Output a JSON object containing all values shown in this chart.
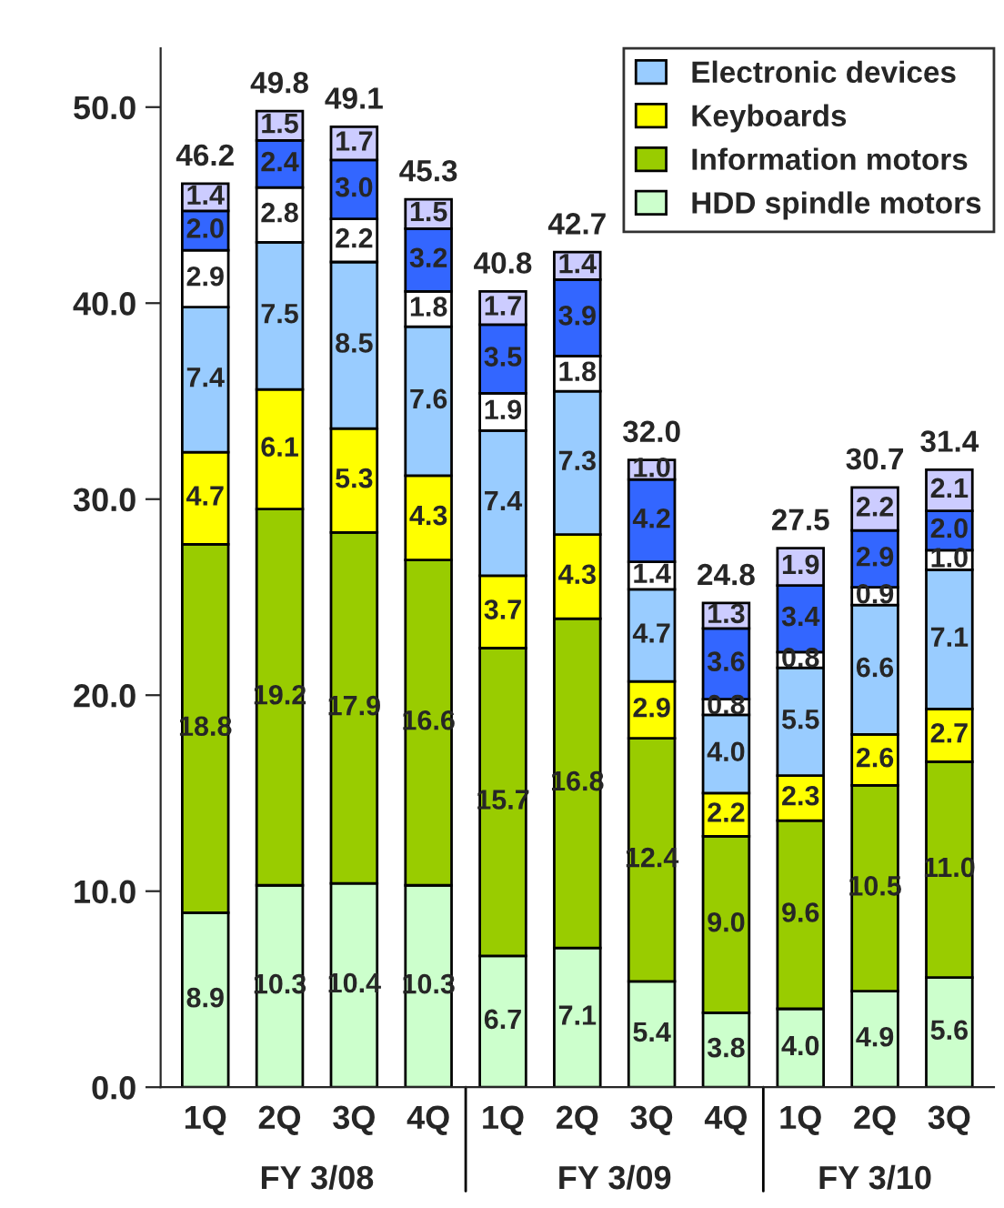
{
  "chart_data": {
    "type": "bar",
    "stacked": true,
    "categories": [
      "1Q",
      "2Q",
      "3Q",
      "4Q",
      "1Q",
      "2Q",
      "3Q",
      "4Q",
      "1Q",
      "2Q",
      "3Q"
    ],
    "series": [
      {
        "name": "HDD spindle motors",
        "color": "#ccffcc",
        "values": [
          8.9,
          10.3,
          10.4,
          10.3,
          6.7,
          7.1,
          5.4,
          3.8,
          4.0,
          4.9,
          5.6
        ],
        "value_labels": [
          "8.9",
          "10.3",
          "10.4",
          "10.3",
          "6.7",
          "7.1",
          "5.4",
          "3.8",
          "4.0",
          "4.9",
          "5.6"
        ]
      },
      {
        "name": "Information motors",
        "color": "#99cc00",
        "values": [
          18.8,
          19.2,
          17.9,
          16.6,
          15.7,
          16.8,
          12.4,
          9.0,
          9.6,
          10.5,
          11.0
        ],
        "value_labels": [
          "18.8",
          "19.2",
          "17.9",
          "16.6",
          "15.7",
          "16.8",
          "12.4",
          "9.0",
          "9.6",
          "10.5",
          "11.0"
        ]
      },
      {
        "name": "Keyboards",
        "color": "#ffff00",
        "values": [
          4.7,
          6.1,
          5.3,
          4.3,
          3.7,
          4.3,
          2.9,
          2.2,
          2.3,
          2.6,
          2.7
        ],
        "value_labels": [
          "4.7",
          "6.1",
          "5.3",
          "4.3",
          "3.7",
          "4.3",
          "2.9",
          "2.2",
          "2.3",
          "2.6",
          "2.7"
        ]
      },
      {
        "name": "Electronic devices",
        "color": "#99ccff",
        "values": [
          7.4,
          7.5,
          8.5,
          7.6,
          7.4,
          7.3,
          4.7,
          4.0,
          5.5,
          6.6,
          7.1
        ],
        "value_labels": [
          "7.4",
          "7.5",
          "8.5",
          "7.6",
          "7.4",
          "7.3",
          "4.7",
          "4.0",
          "5.5",
          "6.6",
          "7.1"
        ]
      },
      {
        "color": "#ffffff",
        "values": [
          2.9,
          2.8,
          2.2,
          1.8,
          1.9,
          1.8,
          1.4,
          0.8,
          0.8,
          0.9,
          1.0
        ],
        "value_labels": [
          "2.9",
          "2.8",
          "2.2",
          "1.8",
          "1.9",
          "1.8",
          "1.4",
          "0.8",
          "0.8",
          "0.9",
          "1.0"
        ]
      },
      {
        "color": "#3366ff",
        "values": [
          2.0,
          2.4,
          3.0,
          3.2,
          3.5,
          3.9,
          4.2,
          3.6,
          3.4,
          2.9,
          2.0
        ],
        "value_labels": [
          "2.0",
          "2.4",
          "3.0",
          "3.2",
          "3.5",
          "3.9",
          "4.2",
          "3.6",
          "3.4",
          "2.9",
          "2.0"
        ]
      },
      {
        "color": "#ccccff",
        "values": [
          1.4,
          1.5,
          1.7,
          1.5,
          1.7,
          1.4,
          1.0,
          1.3,
          1.9,
          2.2,
          2.1
        ],
        "value_labels": [
          "1.4",
          "1.5",
          "1.7",
          "1.5",
          "1.7",
          "1.4",
          "1.0",
          "1.3",
          "1.9",
          "2.2",
          "2.1"
        ]
      }
    ],
    "totals": [
      "46.2",
      "49.8",
      "49.1",
      "45.3",
      "40.8",
      "42.7",
      "32.0",
      "24.8",
      "27.5",
      "30.7",
      "31.4"
    ],
    "ylim": [
      0,
      53
    ],
    "yticks": [
      {
        "value": 0,
        "label": "0.0"
      },
      {
        "value": 10,
        "label": "10.0"
      },
      {
        "value": 20,
        "label": "20.0"
      },
      {
        "value": 30,
        "label": "30.0"
      },
      {
        "value": 40,
        "label": "40.0"
      },
      {
        "value": 50,
        "label": "50.0"
      }
    ],
    "annotations": [
      "FY 3/08",
      "FY 3/09",
      "FY 3/10"
    ],
    "legend": "top right",
    "grid": false
  }
}
